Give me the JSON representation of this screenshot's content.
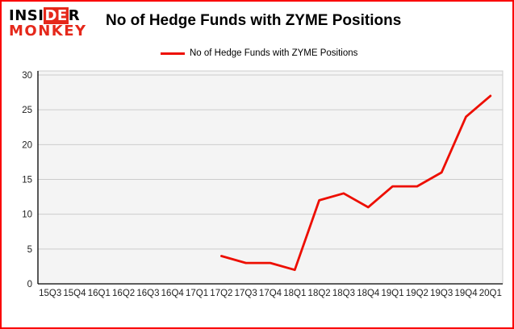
{
  "page": {
    "border_color": "#fa0000",
    "background": "#ffffff"
  },
  "logo": {
    "line1_pre": "INSI",
    "line1_accent": "DE",
    "line1_post": "R",
    "line2": "MONKEY",
    "accent_color": "#e5281b",
    "text_color": "#000000"
  },
  "header": {
    "title": "No of Hedge Funds with ZYME Positions"
  },
  "legend": {
    "label": "No of Hedge Funds with ZYME Positions",
    "line_color": "#ed0e00"
  },
  "chart_data": {
    "type": "line",
    "title": "No of Hedge Funds with ZYME Positions",
    "x_labels": [
      "15Q3",
      "15Q4",
      "16Q1",
      "16Q2",
      "16Q3",
      "16Q4",
      "17Q1",
      "17Q2",
      "17Q3",
      "17Q4",
      "18Q1",
      "18Q2",
      "18Q3",
      "18Q4",
      "19Q1",
      "19Q2",
      "19Q3",
      "19Q4",
      "20Q1"
    ],
    "y_ticks": [
      0,
      5,
      10,
      15,
      20,
      25,
      30
    ],
    "ylim": [
      0,
      30
    ],
    "grid": true,
    "legend_position": "top-left",
    "plot_bg": "#f4f4f4",
    "grid_color": "#cccccc",
    "axis_color": "#000000",
    "tick_color": "#222222",
    "series": [
      {
        "name": "No of Hedge Funds with ZYME Positions",
        "color": "#ed0e00",
        "points": [
          {
            "x": "17Q2",
            "y": 4
          },
          {
            "x": "17Q3",
            "y": 3
          },
          {
            "x": "17Q4",
            "y": 3
          },
          {
            "x": "18Q1",
            "y": 2
          },
          {
            "x": "18Q2",
            "y": 12
          },
          {
            "x": "18Q3",
            "y": 13
          },
          {
            "x": "18Q4",
            "y": 11
          },
          {
            "x": "19Q1",
            "y": 14
          },
          {
            "x": "19Q2",
            "y": 14
          },
          {
            "x": "19Q3",
            "y": 16
          },
          {
            "x": "19Q4",
            "y": 24
          },
          {
            "x": "20Q1",
            "y": 27
          }
        ]
      }
    ]
  }
}
